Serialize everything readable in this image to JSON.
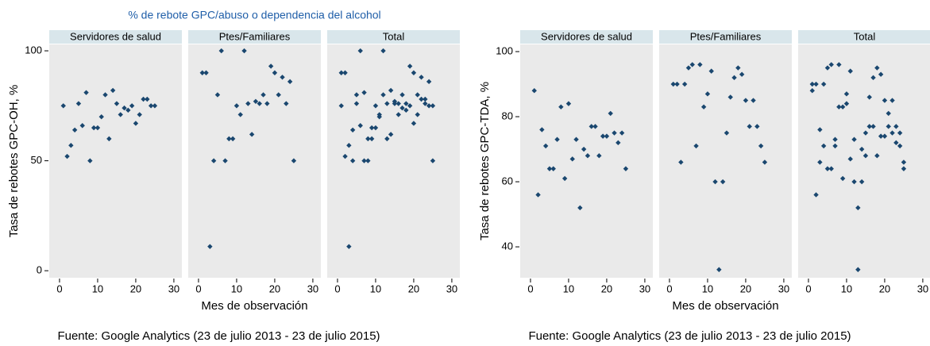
{
  "chart_data": [
    {
      "type": "scatter",
      "title": "% de rebote GPC/abuso o dependencia del alcohol",
      "ylabel": "Tasa de rebotes GPC-OH, %",
      "xlabel": "Mes de observación",
      "note": "Fuente: Google Analytics (23 de julio 2013 - 23 de julio 2015)",
      "color": "#1a476f",
      "xlim": [
        -2.7,
        32.1
      ],
      "xticks": [
        0,
        10,
        20,
        30
      ],
      "ylim": [
        -3.2,
        102.9
      ],
      "yticks": [
        0,
        50,
        100
      ],
      "panels": [
        {
          "title": "Servidores de salud",
          "x": [
            1,
            2,
            3,
            4,
            5,
            6,
            7,
            8,
            9,
            10,
            11,
            12,
            13,
            14,
            15,
            16,
            17,
            18,
            19,
            20,
            21,
            22,
            23,
            24,
            25
          ],
          "y": [
            75,
            52,
            57,
            64,
            76,
            66,
            81,
            50,
            65,
            65,
            70,
            80,
            60,
            82,
            76,
            71,
            74,
            73,
            75,
            67,
            71,
            78,
            78,
            75,
            75
          ]
        },
        {
          "title": "Ptes/Familiares",
          "x": [
            1,
            2,
            3,
            4,
            5,
            6,
            7,
            8,
            9,
            10,
            11,
            12,
            13,
            14,
            15,
            16,
            17,
            18,
            19,
            20,
            21,
            22,
            23,
            24,
            25
          ],
          "y": [
            90,
            90,
            11,
            50,
            80,
            100,
            50,
            60,
            60,
            75,
            71,
            100,
            76,
            62,
            77,
            76,
            80,
            76,
            93,
            90,
            80,
            88,
            76,
            86,
            50
          ]
        },
        {
          "title": "Total",
          "x": [
            1,
            2,
            3,
            4,
            5,
            6,
            7,
            8,
            9,
            10,
            11,
            12,
            13,
            14,
            15,
            16,
            17,
            18,
            19,
            20,
            21,
            22,
            23,
            24,
            25,
            1,
            2,
            3,
            4,
            5,
            6,
            7,
            8,
            9,
            10,
            11,
            12,
            13,
            14,
            15,
            16,
            17,
            18,
            19,
            20,
            21,
            22,
            23,
            24,
            25
          ],
          "y": [
            75,
            52,
            57,
            64,
            76,
            66,
            81,
            50,
            65,
            65,
            70,
            80,
            60,
            82,
            76,
            71,
            74,
            73,
            75,
            67,
            71,
            78,
            78,
            75,
            75,
            90,
            90,
            11,
            50,
            80,
            100,
            50,
            60,
            60,
            75,
            71,
            100,
            76,
            62,
            77,
            76,
            80,
            76,
            93,
            90,
            80,
            88,
            76,
            86,
            50
          ]
        }
      ]
    },
    {
      "type": "scatter",
      "ylabel": "Tasa de rebotes GPC-TDA, %",
      "xlabel": "Mes de observación",
      "note": "Fuente: Google Analytics (23 de julio 2013 - 23 de julio 2015)",
      "color": "#1a476f",
      "xlim": [
        -2.7,
        32.1
      ],
      "xticks": [
        0,
        10,
        20,
        30
      ],
      "ylim": [
        30.5,
        102.2
      ],
      "yticks": [
        40,
        60,
        80,
        100
      ],
      "panels": [
        {
          "title": "Servidores de salud",
          "x": [
            1,
            2,
            3,
            4,
            5,
            6,
            7,
            8,
            9,
            10,
            11,
            12,
            13,
            14,
            15,
            16,
            17,
            18,
            19,
            20,
            21,
            22,
            23,
            24,
            25
          ],
          "y": [
            88,
            56,
            76,
            71,
            64,
            64,
            73,
            83,
            61,
            84,
            67,
            73,
            52,
            70,
            68,
            77,
            77,
            68,
            74,
            74,
            81,
            75,
            72,
            75,
            64
          ]
        },
        {
          "title": "Ptes/Familiares",
          "x": [
            1,
            2,
            3,
            4,
            5,
            6,
            7,
            8,
            9,
            10,
            11,
            12,
            13,
            14,
            15,
            16,
            17,
            18,
            19,
            20,
            21,
            22,
            23,
            24,
            25
          ],
          "y": [
            90,
            90,
            66,
            90,
            95,
            96,
            71,
            96,
            83,
            87,
            94,
            60,
            33,
            60,
            75,
            86,
            92,
            95,
            93,
            85,
            77,
            85,
            77,
            71,
            66
          ]
        },
        {
          "title": "Total",
          "x": [
            1,
            2,
            3,
            4,
            5,
            6,
            7,
            8,
            9,
            10,
            11,
            12,
            13,
            14,
            15,
            16,
            17,
            18,
            19,
            20,
            21,
            22,
            23,
            24,
            25,
            1,
            2,
            3,
            4,
            5,
            6,
            7,
            8,
            9,
            10,
            11,
            12,
            13,
            14,
            15,
            16,
            17,
            18,
            19,
            20,
            21,
            22,
            23,
            24,
            25
          ],
          "y": [
            88,
            56,
            76,
            71,
            64,
            64,
            73,
            83,
            61,
            84,
            67,
            73,
            52,
            70,
            68,
            77,
            77,
            68,
            74,
            74,
            81,
            75,
            72,
            75,
            64,
            90,
            90,
            66,
            90,
            95,
            96,
            71,
            96,
            83,
            87,
            94,
            60,
            33,
            60,
            75,
            86,
            92,
            95,
            93,
            85,
            77,
            85,
            77,
            71,
            66
          ]
        }
      ]
    }
  ]
}
